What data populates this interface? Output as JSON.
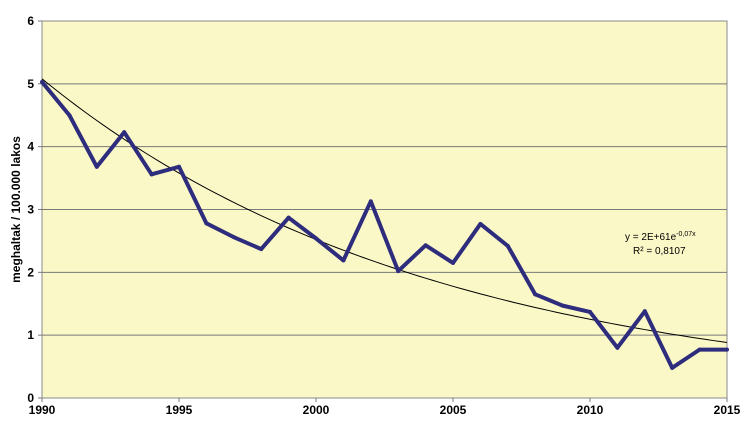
{
  "chart_data": {
    "type": "line",
    "title": "",
    "xlabel": "",
    "ylabel": "meghaltak / 100.000 lakos",
    "xlim": [
      1990,
      2015
    ],
    "ylim": [
      0,
      6
    ],
    "x_ticks": [
      "1990",
      "1995",
      "2000",
      "2005",
      "2010",
      "2015"
    ],
    "y_ticks": [
      "0",
      "1",
      "2",
      "3",
      "4",
      "5",
      "6"
    ],
    "grid": "horizontal",
    "plot_background": "#fbf8c8",
    "series": [
      {
        "color": "#2e2c7c",
        "x": [
          1990,
          1991,
          1992,
          1993,
          1994,
          1995,
          1996,
          1997,
          1998,
          1999,
          2000,
          2001,
          2002,
          2003,
          2004,
          2005,
          2006,
          2007,
          2008,
          2009,
          2010,
          2011,
          2012,
          2013,
          2014,
          2015
        ],
        "y": [
          5.03,
          4.5,
          3.68,
          4.23,
          3.56,
          3.68,
          2.78,
          2.56,
          2.37,
          2.87,
          2.54,
          2.19,
          3.13,
          2.02,
          2.43,
          2.15,
          2.77,
          2.42,
          1.65,
          1.47,
          1.37,
          0.8,
          1.38,
          0.48,
          0.77,
          0.77
        ]
      }
    ],
    "trendline": {
      "type": "exponential",
      "color": "#000000",
      "a": 5.08,
      "b": -0.07,
      "equation_base": "y = 2E+61e",
      "equation_exp": "-0,07x",
      "r_squared": "R² = 0,8107"
    }
  }
}
